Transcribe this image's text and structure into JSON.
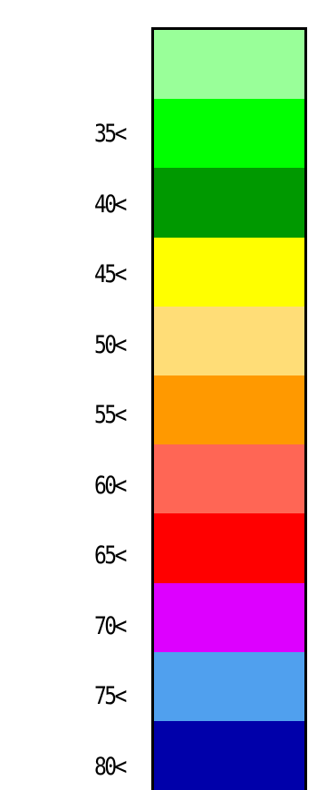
{
  "legend": {
    "bins": [
      {
        "label": "",
        "color": "#99ff99"
      },
      {
        "label": "35<",
        "color": "#00ff00"
      },
      {
        "label": "40<",
        "color": "#009900"
      },
      {
        "label": "45<",
        "color": "#ffff00"
      },
      {
        "label": "50<",
        "color": "#ffdd77"
      },
      {
        "label": "55<",
        "color": "#ff9900"
      },
      {
        "label": "60<",
        "color": "#ff6655"
      },
      {
        "label": "65<",
        "color": "#ff0000"
      },
      {
        "label": "70<",
        "color": "#dd00ff"
      },
      {
        "label": "75<",
        "color": "#50a0ee"
      },
      {
        "label": "80<",
        "color": "#0000aa"
      }
    ]
  }
}
